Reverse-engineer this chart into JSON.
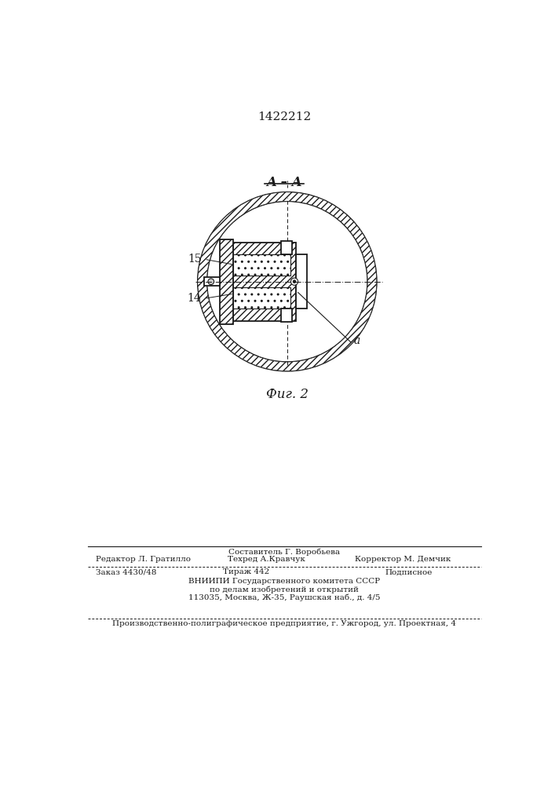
{
  "patent_number": "1422212",
  "fig_label": "Фиг. 2",
  "section_label": "A – A",
  "label_15": "15",
  "label_14": "14",
  "label_a": "a",
  "editor_line": "Редактор Л. Гратилло",
  "composer_line": "Составитель Г. Воробьева",
  "techred_line": "Техред А.Кравчук",
  "corrector_line": "Корректор М. Демчик",
  "order_line": "Заказ 4430/48",
  "tirazh_line": "Тираж 442",
  "podpisnoe_line": "Подписное",
  "vniigi_line1": "ВНИИПИ Государственного комитета СССР",
  "vniigi_line2": "по делам изобретений и открытий",
  "vniigi_line3": "113035, Москва, Ж-35, Раушская наб., д. 4/5",
  "polygraph_line": "Производственно-полиграфическое предприятие, г. Ужгород, ул. Проектная, 4",
  "bg_color": "#ffffff",
  "line_color": "#1a1a1a"
}
